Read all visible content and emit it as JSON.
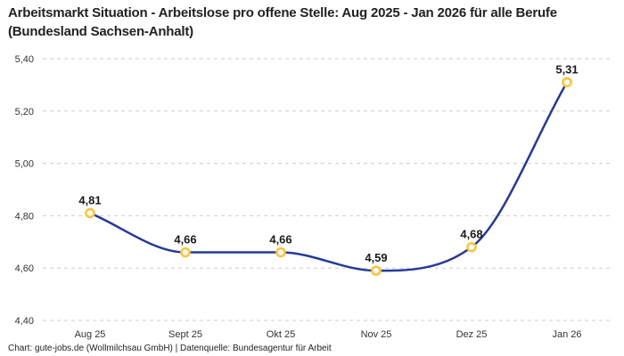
{
  "header": {
    "title": "Arbeitsmarkt Situation - Arbeitslose pro offene Stelle: Aug 2025 - Jan 2026 für alle Berufe (Bundesland Sachsen-Anhalt)"
  },
  "footer": {
    "credit": "Chart: gute-jobs.de (Wollmilchsau GmbH) | Datenquelle: Bundesagentur für Arbeit"
  },
  "chart_data": {
    "type": "line",
    "title": "Arbeitsmarkt Situation - Arbeitslose pro offene Stelle: Aug 2025 - Jan 2026 für alle Berufe (Bundesland Sachsen-Anhalt)",
    "categories": [
      "Aug 25",
      "Sept 25",
      "Okt 25",
      "Nov 25",
      "Dez 25",
      "Jan 26"
    ],
    "values": [
      4.81,
      4.66,
      4.66,
      4.59,
      4.68,
      5.31
    ],
    "value_labels": [
      "4,81",
      "4,66",
      "4,66",
      "4,59",
      "4,68",
      "5,31"
    ],
    "xlabel": "",
    "ylabel": "",
    "ylim": [
      4.4,
      5.4
    ],
    "yticks": [
      4.4,
      4.6,
      4.8,
      5.0,
      5.2,
      5.4
    ],
    "ytick_labels": [
      "4,40",
      "4,60",
      "4,80",
      "5,00",
      "5,20",
      "5,40"
    ],
    "grid": "horizontal-dashed",
    "legend": "none",
    "interpolation": "monotone",
    "colors": {
      "line": "#24399b",
      "marker_stroke": "#fdc435",
      "marker_fill": "#ffffff",
      "grid": "#cdcdcd",
      "title": "#222222",
      "point_label": "#1a1a1a",
      "tick_label": "#333333",
      "background": "#ffffff"
    }
  }
}
